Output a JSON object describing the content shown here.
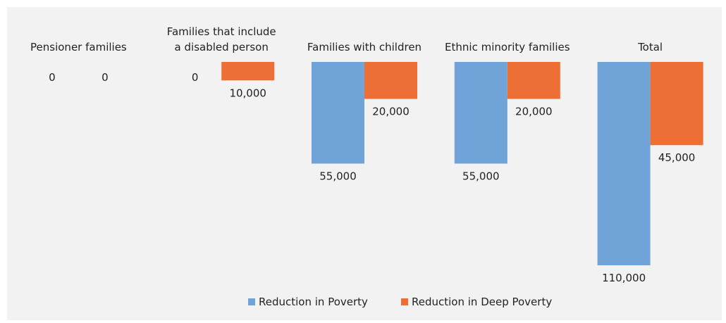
{
  "chart_data": {
    "type": "bar",
    "categories": [
      "Pensioner families",
      "Families that include\na disabled person",
      "Families with children",
      "Ethnic minority families",
      "Total"
    ],
    "series": [
      {
        "name": "Reduction in Poverty",
        "color": "#70a3d8",
        "values": [
          0,
          0,
          55000,
          55000,
          110000
        ],
        "labels": [
          "0",
          "0",
          "55,000",
          "55,000",
          "110,000"
        ]
      },
      {
        "name": "Reduction in Deep Poverty",
        "color": "#ed6f36",
        "values": [
          0,
          10000,
          20000,
          20000,
          45000
        ],
        "labels": [
          "0",
          "10,000",
          "20,000",
          "20,000",
          "45,000"
        ]
      }
    ],
    "direction": "downward",
    "ylim": [
      0,
      110000
    ],
    "grid": false,
    "legend_position": "bottom"
  }
}
